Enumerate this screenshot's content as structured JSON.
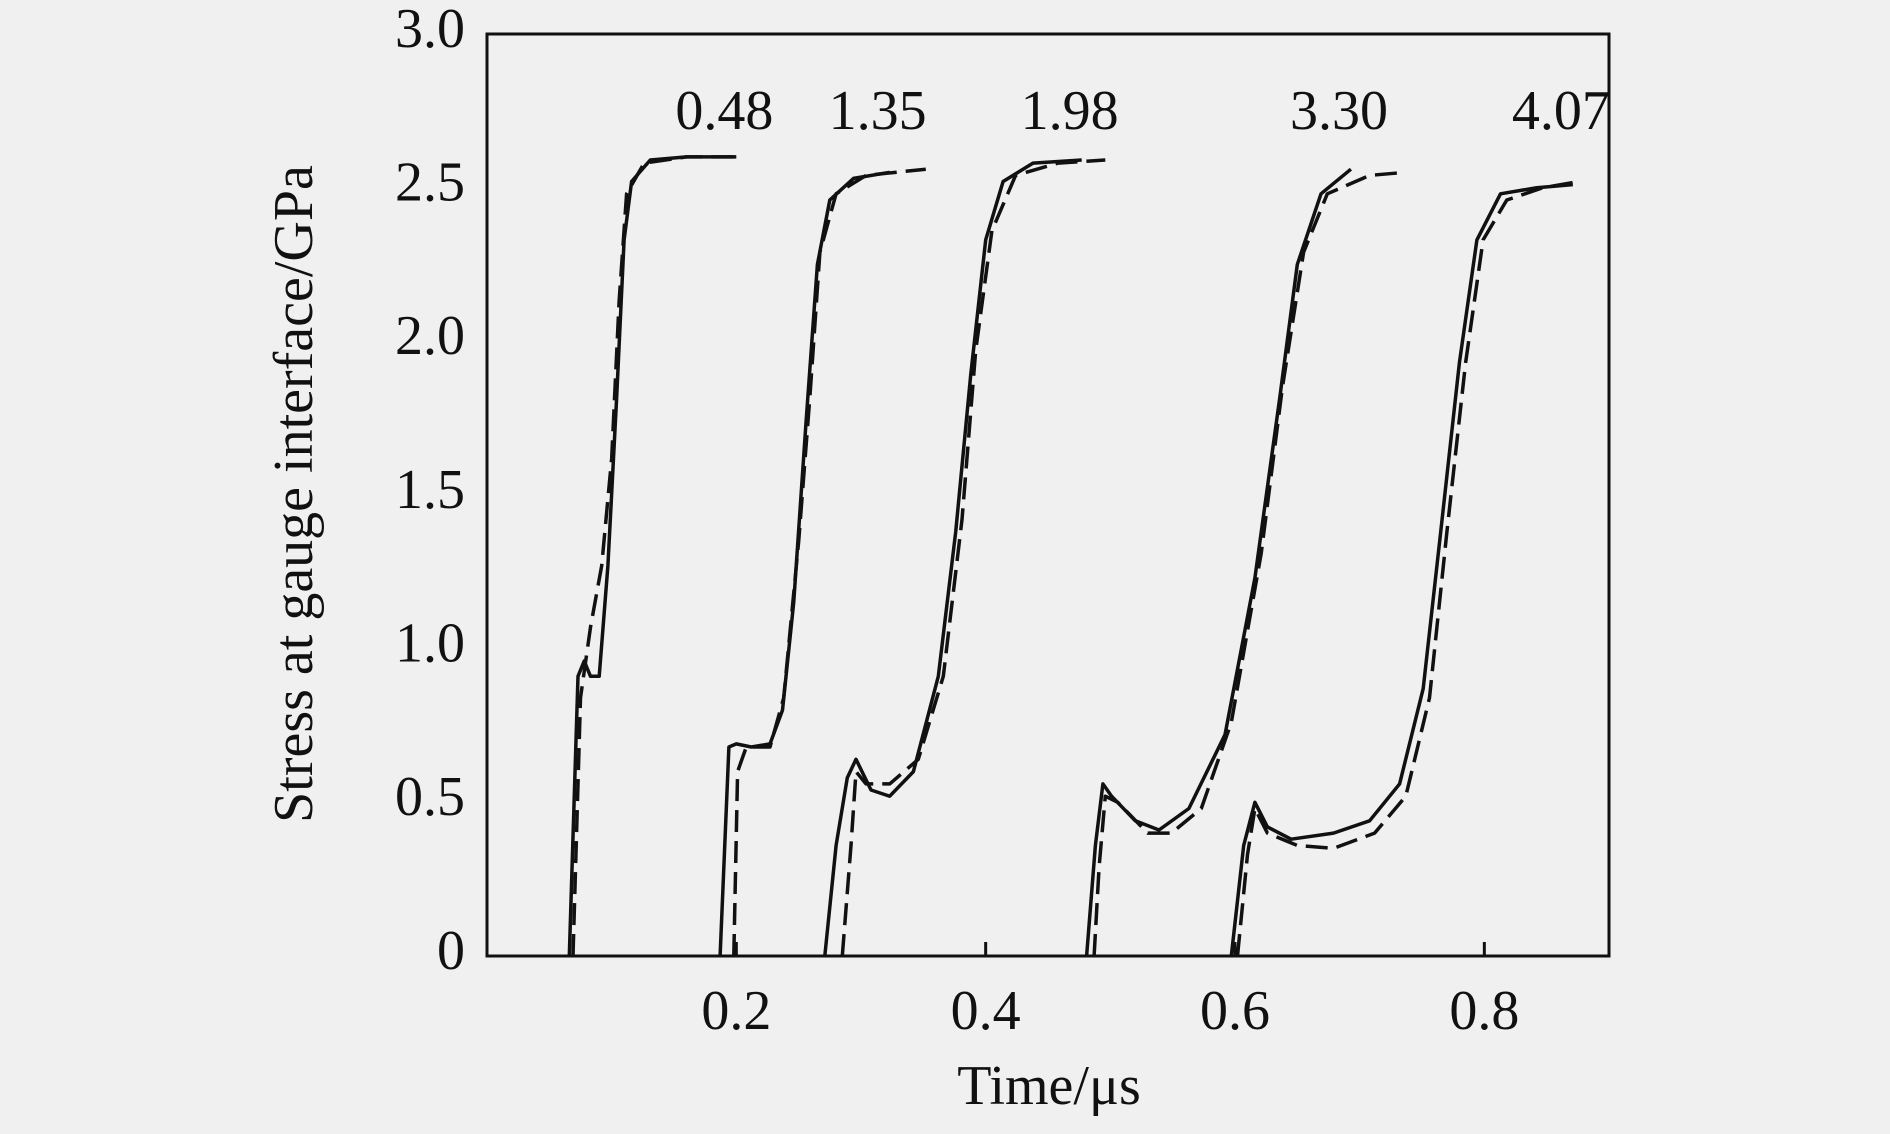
{
  "chart_data": {
    "type": "line",
    "x_label": "Time/μs",
    "y_label": "Stress at gauge interface/GPa",
    "xlim": [
      0,
      0.9
    ],
    "ylim": [
      0,
      3.0
    ],
    "xticks": [
      0.2,
      0.4,
      0.6,
      0.8
    ],
    "yticks": [
      0,
      0.5,
      {
        "value": 1,
        "label": "1.0"
      },
      1.5,
      {
        "value": 2,
        "label": "2.0"
      },
      2.5,
      {
        "value": 3,
        "label": "3.0"
      }
    ],
    "color": "#111111",
    "curves": [
      {
        "label": "0.48",
        "solid": {
          "x": [
            0.066,
            0.073,
            0.078,
            0.083,
            0.09,
            0.097,
            0.104,
            0.11,
            0.116,
            0.131,
            0.16,
            0.2
          ],
          "values": [
            0,
            0.91,
            0.96,
            0.91,
            0.91,
            1.27,
            1.82,
            2.33,
            2.52,
            2.59,
            2.6,
            2.6
          ]
        },
        "dashed": {
          "x": [
            0.069,
            0.075,
            0.083,
            0.092,
            0.1,
            0.106,
            0.112,
            0.126,
            0.16,
            0.198
          ],
          "values": [
            0,
            0.84,
            1.07,
            1.27,
            1.62,
            2.13,
            2.48,
            2.58,
            2.6,
            2.6
          ]
        }
      },
      {
        "label": "1.35",
        "solid": {
          "x": [
            0.187,
            0.194,
            0.2,
            0.212,
            0.227,
            0.237,
            0.246,
            0.256,
            0.265,
            0.275,
            0.294,
            0.323
          ],
          "values": [
            0,
            0.68,
            0.69,
            0.68,
            0.69,
            0.8,
            1.15,
            1.74,
            2.25,
            2.46,
            2.53,
            2.55
          ]
        },
        "dashed": {
          "x": [
            0.198,
            0.201,
            0.208,
            0.227,
            0.238,
            0.25,
            0.259,
            0.267,
            0.28,
            0.304,
            0.352
          ],
          "values": [
            0,
            0.6,
            0.68,
            0.68,
            0.84,
            1.35,
            1.82,
            2.29,
            2.48,
            2.54,
            2.56
          ]
        }
      },
      {
        "label": "1.98",
        "solid": {
          "x": [
            0.271,
            0.28,
            0.289,
            0.296,
            0.308,
            0.323,
            0.342,
            0.362,
            0.376,
            0.388,
            0.4,
            0.414,
            0.438,
            0.477
          ],
          "values": [
            0,
            0.36,
            0.58,
            0.64,
            0.54,
            0.52,
            0.6,
            0.91,
            1.38,
            1.89,
            2.33,
            2.52,
            2.58,
            2.59
          ]
        },
        "dashed": {
          "x": [
            0.285,
            0.292,
            0.296,
            0.304,
            0.323,
            0.346,
            0.366,
            0.381,
            0.392,
            0.405,
            0.424,
            0.458,
            0.496
          ],
          "values": [
            0,
            0.36,
            0.6,
            0.56,
            0.56,
            0.64,
            0.91,
            1.42,
            1.97,
            2.36,
            2.54,
            2.58,
            2.59
          ]
        }
      },
      {
        "label": "3.30",
        "solid": {
          "x": [
            0.481,
            0.488,
            0.494,
            0.501,
            0.52,
            0.539,
            0.563,
            0.592,
            0.616,
            0.636,
            0.65,
            0.669,
            0.693
          ],
          "values": [
            0,
            0.36,
            0.56,
            0.52,
            0.44,
            0.41,
            0.48,
            0.72,
            1.23,
            1.82,
            2.25,
            2.48,
            2.56
          ]
        },
        "dashed": {
          "x": [
            0.487,
            0.491,
            0.496,
            0.506,
            0.53,
            0.549,
            0.573,
            0.597,
            0.621,
            0.638,
            0.655,
            0.674,
            0.708,
            0.737
          ],
          "values": [
            0,
            0.29,
            0.52,
            0.5,
            0.4,
            0.4,
            0.48,
            0.76,
            1.31,
            1.85,
            2.29,
            2.48,
            2.54,
            2.55
          ]
        }
      },
      {
        "label": "4.07",
        "solid": {
          "x": [
            0.597,
            0.607,
            0.616,
            0.626,
            0.645,
            0.679,
            0.708,
            0.732,
            0.751,
            0.765,
            0.78,
            0.794,
            0.813,
            0.842,
            0.871
          ],
          "values": [
            0,
            0.36,
            0.5,
            0.42,
            0.38,
            0.4,
            0.44,
            0.56,
            0.87,
            1.38,
            1.93,
            2.33,
            2.48,
            2.5,
            2.51
          ]
        },
        "dashed": {
          "x": [
            0.602,
            0.61,
            0.616,
            0.626,
            0.65,
            0.679,
            0.712,
            0.737,
            0.756,
            0.77,
            0.785,
            0.799,
            0.818,
            0.847,
            0.876
          ],
          "values": [
            0,
            0.33,
            0.48,
            0.4,
            0.36,
            0.35,
            0.4,
            0.52,
            0.84,
            1.38,
            1.93,
            2.33,
            2.46,
            2.5,
            2.52
          ]
        }
      }
    ]
  }
}
